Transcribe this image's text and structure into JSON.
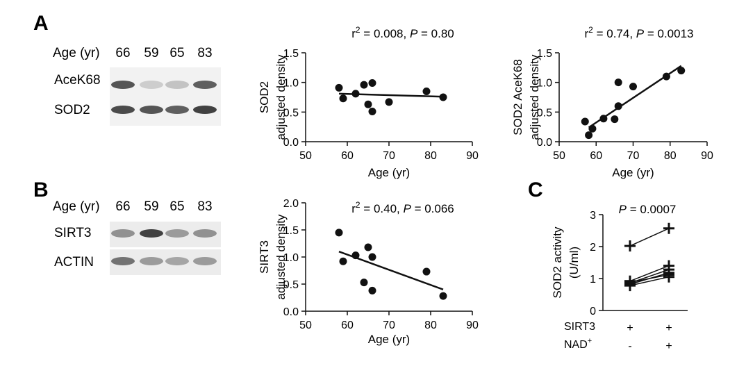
{
  "panels": {
    "A": {
      "letter": "A",
      "blot": {
        "age_label": "Age (yr)",
        "ages": [
          "66",
          "59",
          "65",
          "83"
        ],
        "rows": [
          {
            "label": "AceK68",
            "intensity": [
              0.75,
              0.15,
              0.2,
              0.7
            ]
          },
          {
            "label": "SOD2",
            "intensity": [
              0.8,
              0.75,
              0.7,
              0.85
            ]
          }
        ]
      }
    },
    "B": {
      "letter": "B",
      "blot": {
        "age_label": "Age (yr)",
        "ages": [
          "66",
          "59",
          "65",
          "83"
        ],
        "rows": [
          {
            "label": "SIRT3",
            "intensity": [
              0.45,
              0.85,
              0.4,
              0.45
            ]
          },
          {
            "label": "ACTIN",
            "intensity": [
              0.6,
              0.4,
              0.35,
              0.4
            ]
          }
        ]
      }
    },
    "C": {
      "letter": "C"
    }
  },
  "chart_data": [
    {
      "id": "sod2-vs-age",
      "type": "scatter",
      "stat": {
        "r2": "r",
        "sup": "2",
        "rest": " = 0.008, ",
        "p": "P",
        "pval": " = 0.80"
      },
      "ylabel_lines": [
        "SOD2",
        "adjusted density"
      ],
      "xlabel": "Age (yr)",
      "xlim": [
        50,
        90
      ],
      "ylim": [
        0,
        1.5
      ],
      "xticks": [
        "50",
        "60",
        "70",
        "80",
        "90"
      ],
      "yticks": [
        "0.0",
        "0.5",
        "1.0",
        "1.5"
      ],
      "points": [
        [
          58,
          0.91
        ],
        [
          59,
          0.73
        ],
        [
          62,
          0.81
        ],
        [
          64,
          0.96
        ],
        [
          65,
          0.63
        ],
        [
          66,
          0.99
        ],
        [
          66,
          0.51
        ],
        [
          70,
          0.67
        ],
        [
          79,
          0.85
        ],
        [
          83,
          0.75
        ]
      ],
      "fit": [
        [
          58,
          0.81
        ],
        [
          83,
          0.76
        ]
      ]
    },
    {
      "id": "sod2-acek68-vs-age",
      "type": "scatter",
      "stat": {
        "r2": "r",
        "sup": "2",
        "rest": " = 0.74, ",
        "p": "P",
        "pval": " = 0.0013"
      },
      "ylabel_lines": [
        "SOD2 AceK68",
        "adjusted density"
      ],
      "xlabel": "Age (yr)",
      "xlim": [
        50,
        90
      ],
      "ylim": [
        0,
        1.5
      ],
      "xticks": [
        "50",
        "60",
        "70",
        "80",
        "90"
      ],
      "yticks": [
        "0.0",
        "0.5",
        "1.0",
        "1.5"
      ],
      "points": [
        [
          57,
          0.34
        ],
        [
          58,
          0.11
        ],
        [
          59,
          0.22
        ],
        [
          62,
          0.39
        ],
        [
          65,
          0.38
        ],
        [
          66,
          0.6
        ],
        [
          66,
          1.0
        ],
        [
          70,
          0.93
        ],
        [
          79,
          1.1
        ],
        [
          83,
          1.2
        ]
      ],
      "fit": [
        [
          58,
          0.24
        ],
        [
          83,
          1.28
        ]
      ]
    },
    {
      "id": "sirt3-vs-age",
      "type": "scatter",
      "stat": {
        "r2": "r",
        "sup": "2",
        "rest": " = 0.40, ",
        "p": "P",
        "pval": " = 0.066"
      },
      "ylabel_lines": [
        "SIRT3",
        "adjusted density"
      ],
      "xlabel": "Age (yr)",
      "xlim": [
        50,
        90
      ],
      "ylim": [
        0,
        2.0
      ],
      "xticks": [
        "50",
        "60",
        "70",
        "80",
        "90"
      ],
      "yticks": [
        "0.0",
        "0.5",
        "1.0",
        "1.5",
        "2.0"
      ],
      "points": [
        [
          58,
          1.45
        ],
        [
          59,
          0.92
        ],
        [
          62,
          1.03
        ],
        [
          64,
          0.53
        ],
        [
          65,
          1.18
        ],
        [
          66,
          1.0
        ],
        [
          66,
          0.38
        ],
        [
          79,
          0.73
        ],
        [
          83,
          0.28
        ]
      ],
      "fit": [
        [
          58,
          1.1
        ],
        [
          83,
          0.4
        ]
      ]
    },
    {
      "id": "sod2-activity",
      "type": "paired",
      "stat": {
        "p": "P",
        "pval": " = 0.0007"
      },
      "ylabel_lines": [
        "SOD2 activity",
        "(U/ml)"
      ],
      "ylim": [
        0,
        3
      ],
      "yticks": [
        "0",
        "1",
        "2",
        "3"
      ],
      "conditions": [
        {
          "name": "SIRT3",
          "values": [
            "+",
            "+"
          ]
        },
        {
          "name": "NAD",
          "sup": "+",
          "values": [
            "-",
            "+"
          ]
        }
      ],
      "pairs": [
        [
          2.02,
          2.57
        ],
        [
          0.92,
          1.4
        ],
        [
          0.86,
          1.28
        ],
        [
          0.82,
          1.18
        ],
        [
          0.78,
          1.05
        ],
        [
          0.88,
          1.12
        ]
      ]
    }
  ]
}
